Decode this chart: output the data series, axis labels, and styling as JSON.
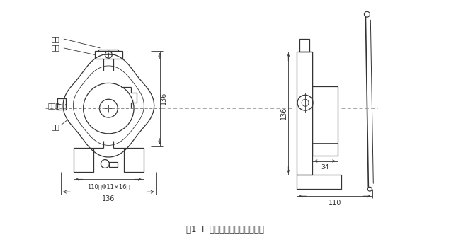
{
  "title": "图1  I  型拉绳开关外形结构简图",
  "bg_color": "#ffffff",
  "line_color": "#333333",
  "label_拉环": "拉环",
  "label_摆臂": "摆臂",
  "label_出线口": "出线口",
  "label_壳体": "壳体",
  "dim_110_phi": "110（Φ11×16）",
  "dim_136a": "136",
  "dim_136b": "136",
  "dim_136c": "136",
  "dim_34": "34",
  "dim_110b": "110"
}
